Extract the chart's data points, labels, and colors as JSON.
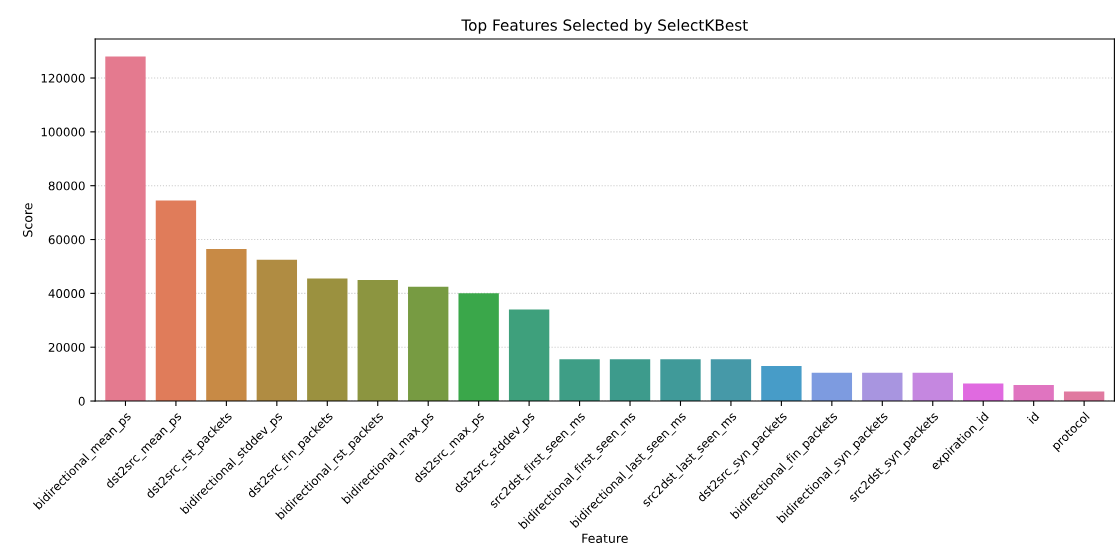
{
  "chart_data": {
    "type": "bar",
    "title": "Top Features Selected by SelectKBest",
    "xlabel": "Feature",
    "ylabel": "Score",
    "categories": [
      "bidirectional_mean_ps",
      "dst2src_mean_ps",
      "dst2src_rst_packets",
      "bidirectional_stddev_ps",
      "dst2src_fin_packets",
      "bidirectional_rst_packets",
      "bidirectional_max_ps",
      "dst2src_max_ps",
      "dst2src_stddev_ps",
      "src2dst_first_seen_ms",
      "bidirectional_first_seen_ms",
      "bidirectional_last_seen_ms",
      "src2dst_last_seen_ms",
      "dst2src_syn_packets",
      "bidirectional_fin_packets",
      "bidirectional_syn_packets",
      "src2dst_syn_packets",
      "expiration_id",
      "id",
      "protocol"
    ],
    "values": [
      128000,
      74500,
      56500,
      52500,
      45500,
      45000,
      42500,
      40000,
      34000,
      15500,
      15500,
      15500,
      15500,
      13000,
      10500,
      10500,
      10500,
      6500,
      6000,
      3500
    ],
    "colors": [
      "#e47a8f",
      "#e07c5a",
      "#c88a45",
      "#b08c42",
      "#9b913f",
      "#8c9540",
      "#779b42",
      "#3aa74a",
      "#3ea07c",
      "#3e9e86",
      "#3d9b8c",
      "#409a99",
      "#4699a8",
      "#479cc8",
      "#7d9be0",
      "#a895e0",
      "#c587e0",
      "#e06ae0",
      "#e074c0",
      "#e07aa0"
    ],
    "ylim": [
      0,
      134500
    ],
    "yticks": [
      0,
      20000,
      40000,
      60000,
      80000,
      100000,
      120000
    ],
    "grid": "y",
    "line_style": "dotted"
  }
}
